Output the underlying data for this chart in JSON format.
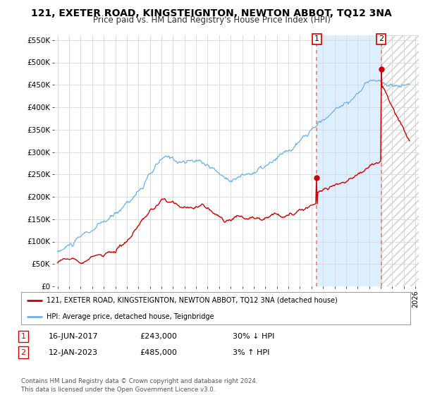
{
  "title": "121, EXETER ROAD, KINGSTEIGNTON, NEWTON ABBOT, TQ12 3NA",
  "subtitle": "Price paid vs. HM Land Registry's House Price Index (HPI)",
  "title_fontsize": 10,
  "subtitle_fontsize": 8.5,
  "ylim": [
    0,
    560000
  ],
  "yticks": [
    0,
    50000,
    100000,
    150000,
    200000,
    250000,
    300000,
    350000,
    400000,
    450000,
    500000,
    550000
  ],
  "ytick_labels": [
    "£0",
    "£50K",
    "£100K",
    "£150K",
    "£200K",
    "£250K",
    "£300K",
    "£350K",
    "£400K",
    "£450K",
    "£500K",
    "£550K"
  ],
  "xlim_start": 1994.7,
  "xlim_end": 2026.3,
  "xticks": [
    1995,
    1996,
    1997,
    1998,
    1999,
    2000,
    2001,
    2002,
    2003,
    2004,
    2005,
    2006,
    2007,
    2008,
    2009,
    2010,
    2011,
    2012,
    2013,
    2014,
    2015,
    2016,
    2017,
    2018,
    2019,
    2020,
    2021,
    2022,
    2023,
    2024,
    2025,
    2026
  ],
  "hpi_color": "#6ab0e8",
  "property_color": "#cc0000",
  "dashed_line_color": "#e88080",
  "marker1_year": 2017.46,
  "marker1_value": 243000,
  "marker2_year": 2023.04,
  "marker2_value": 485000,
  "shade_color": "#ddeeff",
  "hatch_color": "#cccccc",
  "legend_entries": [
    "121, EXETER ROAD, KINGSTEIGNTON, NEWTON ABBOT, TQ12 3NA (detached house)",
    "HPI: Average price, detached house, Teignbridge"
  ],
  "table_rows": [
    {
      "num": "1",
      "date": "16-JUN-2017",
      "price": "£243,000",
      "hpi": "30% ↓ HPI"
    },
    {
      "num": "2",
      "date": "12-JAN-2023",
      "price": "£485,000",
      "hpi": "3% ↑ HPI"
    }
  ],
  "footer": "Contains HM Land Registry data © Crown copyright and database right 2024.\nThis data is licensed under the Open Government Licence v3.0.",
  "background_color": "#ffffff",
  "grid_color": "#d8d8d8"
}
